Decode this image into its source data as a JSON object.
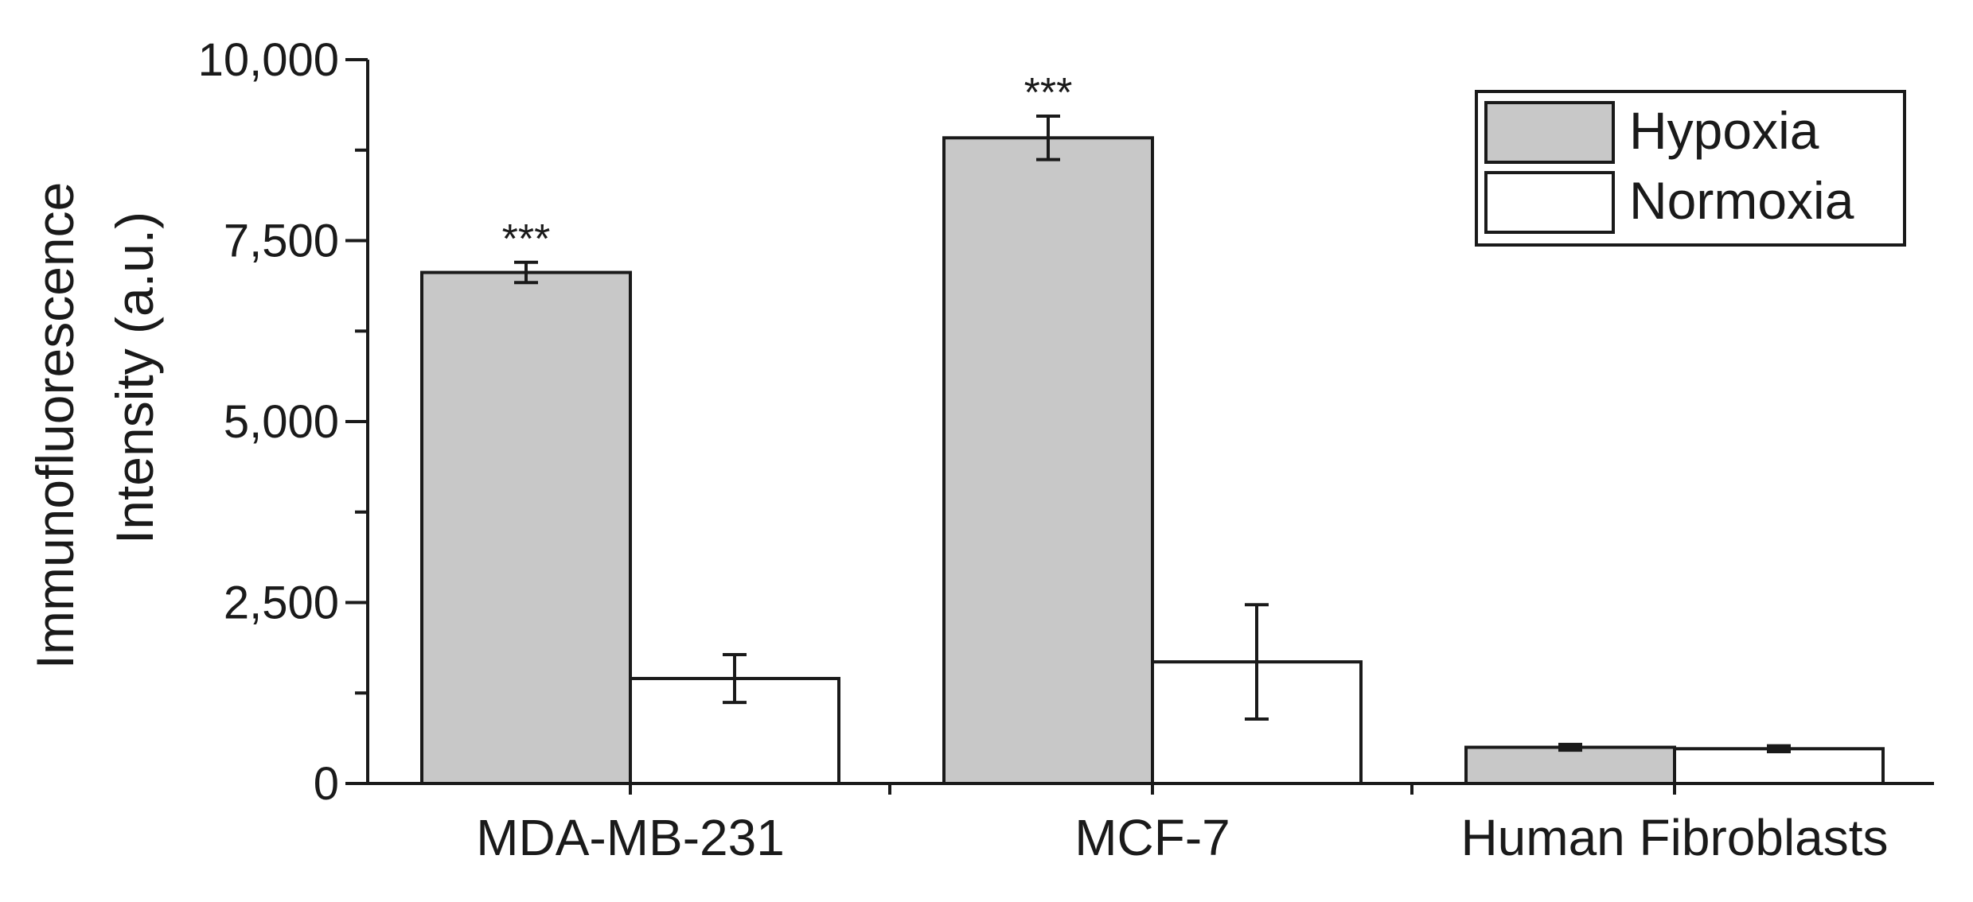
{
  "chart_data": {
    "type": "bar",
    "ylabel_line1": "Immunofluorescence",
    "ylabel_line2": "Intensity (a.u.)",
    "xlabel": "",
    "categories": [
      "MDA-MB-231",
      "MCF-7",
      "Human Fibroblasts"
    ],
    "ylim": [
      0,
      10000
    ],
    "yticks": [
      0,
      2500,
      5000,
      7500,
      10000
    ],
    "ytick_labels": [
      "0",
      "2,500",
      "5,000",
      "7,500",
      "10,000"
    ],
    "series": [
      {
        "name": "Hypoxia",
        "color": "#c8c8c8",
        "values": [
          7060,
          8920,
          500
        ],
        "errors": [
          140,
          300,
          40
        ],
        "significance": [
          "***",
          "***",
          ""
        ]
      },
      {
        "name": "Normoxia",
        "color": "#ffffff",
        "values": [
          1450,
          1680,
          480
        ],
        "errors": [
          330,
          790,
          40
        ],
        "significance": [
          "",
          "",
          ""
        ]
      }
    ],
    "legend_position": "top-right",
    "grid": false
  }
}
